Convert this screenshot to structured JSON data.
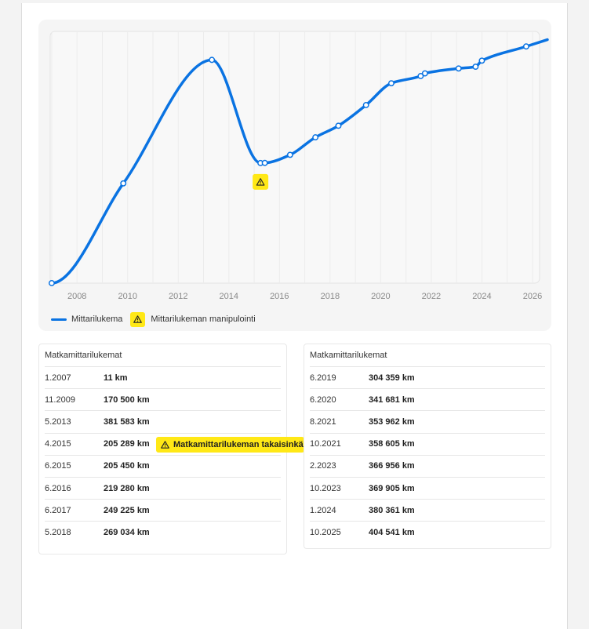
{
  "chart_data": {
    "type": "line",
    "x_ticks": [
      "2008",
      "2010",
      "2012",
      "2014",
      "2016",
      "2018",
      "2020",
      "2022",
      "2024",
      "2026"
    ],
    "points": [
      {
        "date": "1.2007",
        "year": 2007.0,
        "km": 11
      },
      {
        "date": "11.2009",
        "year": 2009.83,
        "km": 170500
      },
      {
        "date": "5.2013",
        "year": 2013.33,
        "km": 381583
      },
      {
        "date": "4.2015",
        "year": 2015.25,
        "km": 205289,
        "manipulated": true
      },
      {
        "date": "6.2015",
        "year": 2015.42,
        "km": 205450
      },
      {
        "date": "6.2016",
        "year": 2016.42,
        "km": 219280
      },
      {
        "date": "6.2017",
        "year": 2017.42,
        "km": 249225
      },
      {
        "date": "5.2018",
        "year": 2018.33,
        "km": 269034
      },
      {
        "date": "6.2019",
        "year": 2019.42,
        "km": 304359
      },
      {
        "date": "6.2020",
        "year": 2020.42,
        "km": 341681
      },
      {
        "date": "8.2021",
        "year": 2021.58,
        "km": 353962
      },
      {
        "date": "10.2021",
        "year": 2021.75,
        "km": 358605
      },
      {
        "date": "2.2023",
        "year": 2023.08,
        "km": 366956
      },
      {
        "date": "10.2023",
        "year": 2023.75,
        "km": 369905
      },
      {
        "date": "1.2024",
        "year": 2024.0,
        "km": 380361
      },
      {
        "date": "10.2025",
        "year": 2025.75,
        "km": 404541
      }
    ],
    "legend": {
      "series_label": "Mittarilukema",
      "warning_label": "Mittarilukeman manipulointi"
    },
    "grid": true,
    "legend_position": "bottom-left",
    "colors": {
      "line": "#0a73e2",
      "warning": "#ffe816"
    }
  },
  "tables": {
    "left": {
      "title": "Matkamittarilukemat",
      "rows": [
        {
          "date": "1.2007",
          "km": "11 km"
        },
        {
          "date": "11.2009",
          "km": "170 500 km"
        },
        {
          "date": "5.2013",
          "km": "381 583 km"
        },
        {
          "date": "4.2015",
          "km": "205 289 km",
          "badge": "Matkamittarilukeman takaisinkää"
        },
        {
          "date": "6.2015",
          "km": "205 450 km"
        },
        {
          "date": "6.2016",
          "km": "219 280 km"
        },
        {
          "date": "6.2017",
          "km": "249 225 km"
        },
        {
          "date": "5.2018",
          "km": "269 034 km"
        }
      ]
    },
    "right": {
      "title": "Matkamittarilukemat",
      "rows": [
        {
          "date": "6.2019",
          "km": "304 359 km"
        },
        {
          "date": "6.2020",
          "km": "341 681 km"
        },
        {
          "date": "8.2021",
          "km": "353 962 km"
        },
        {
          "date": "10.2021",
          "km": "358 605 km"
        },
        {
          "date": "2.2023",
          "km": "366 956 km"
        },
        {
          "date": "10.2023",
          "km": "369 905 km"
        },
        {
          "date": "1.2024",
          "km": "380 361 km"
        },
        {
          "date": "10.2025",
          "km": "404 541 km"
        }
      ]
    }
  }
}
